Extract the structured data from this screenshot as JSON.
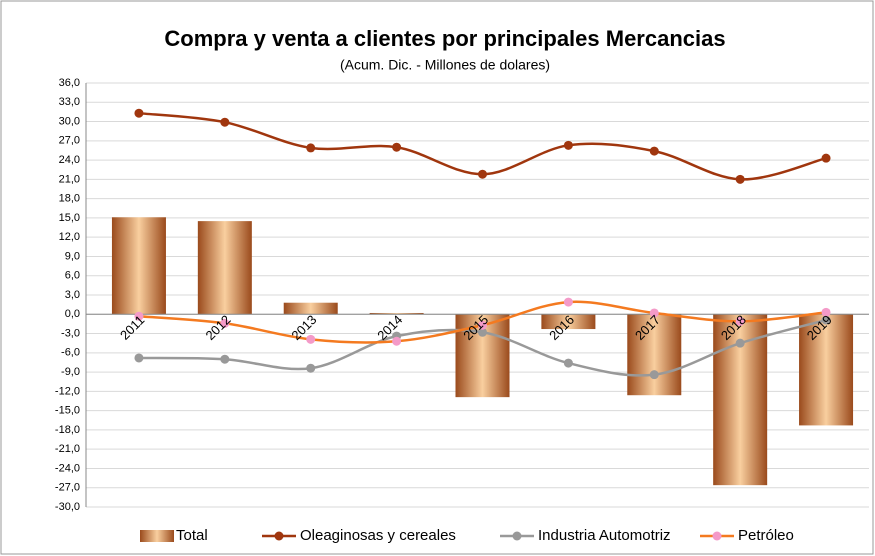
{
  "chart_data": {
    "type": "bar-line",
    "title": "Compra y venta a clientes por principales Mercancias",
    "subtitle": "(Acum. Dic. -  Millones de dolares)",
    "categories": [
      "2011",
      "2012",
      "2013",
      "2014",
      "2015",
      "2016",
      "2017",
      "2018",
      "2019"
    ],
    "series": [
      {
        "name": "Total",
        "type": "bar",
        "color": "#c8733f",
        "values": [
          15.1,
          14.5,
          1.8,
          0.2,
          -12.9,
          -2.3,
          -12.6,
          -26.6,
          -17.3
        ]
      },
      {
        "name": "Oleaginosas y cereales",
        "type": "line",
        "color": "#a0360e",
        "values": [
          31.3,
          29.9,
          25.9,
          26.0,
          21.8,
          26.3,
          25.4,
          21.0,
          24.3
        ]
      },
      {
        "name": "Industria Automotriz",
        "type": "line",
        "color": "#999999",
        "values": [
          -6.8,
          -7.0,
          -8.4,
          -3.4,
          -2.8,
          -7.6,
          -9.4,
          -4.5,
          -0.9
        ]
      },
      {
        "name": "Petróleo",
        "type": "line",
        "color": "#f47a20",
        "marker_color": "#f49ac8",
        "values": [
          -0.3,
          -1.4,
          -3.9,
          -4.2,
          -1.7,
          1.9,
          0.2,
          -1.1,
          0.3
        ]
      }
    ],
    "ylim": [
      -30,
      36
    ],
    "yticks": [
      {
        "value": 36,
        "label": "36,0"
      },
      {
        "value": 33,
        "label": "33,0"
      },
      {
        "value": 30,
        "label": "30,0"
      },
      {
        "value": 27,
        "label": "27,0"
      },
      {
        "value": 24,
        "label": "24,0"
      },
      {
        "value": 21,
        "label": "21,0"
      },
      {
        "value": 18,
        "label": "18,0"
      },
      {
        "value": 15,
        "label": "15,0"
      },
      {
        "value": 12,
        "label": "12,0"
      },
      {
        "value": 9,
        "label": "9,0"
      },
      {
        "value": 6,
        "label": "6,0"
      },
      {
        "value": 3,
        "label": "3,0"
      },
      {
        "value": 0,
        "label": "0,0"
      },
      {
        "value": -3,
        "label": "-3,0"
      },
      {
        "value": -6,
        "label": "-6,0"
      },
      {
        "value": -9,
        "label": "-9,0"
      },
      {
        "value": -12,
        "label": "-12,0"
      },
      {
        "value": -15,
        "label": "-15,0"
      },
      {
        "value": -18,
        "label": "-18,0"
      },
      {
        "value": -21,
        "label": "-21,0"
      },
      {
        "value": -24,
        "label": "-24,0"
      },
      {
        "value": -27,
        "label": "-27,0"
      },
      {
        "value": -30,
        "label": "-30,0"
      }
    ],
    "grid": true,
    "legend": "bottom"
  }
}
